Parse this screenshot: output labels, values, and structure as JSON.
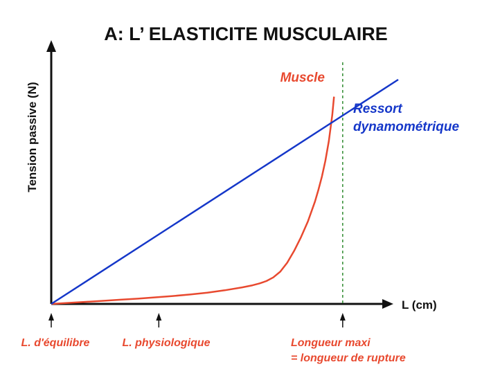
{
  "chart_data": {
    "type": "line",
    "title": "A: L’ ELASTICITE MUSCULAIRE",
    "ylabel": "Tension passive (N)",
    "xlabel": "L (cm)",
    "grid": false,
    "series": [
      {
        "name": "Muscle",
        "color": "#e8492f",
        "x": [
          0,
          5,
          10,
          15,
          20,
          25,
          30,
          35,
          40,
          45,
          50,
          55,
          58,
          60,
          62,
          64,
          66,
          68,
          70,
          72,
          74,
          76,
          77,
          78,
          79,
          80,
          81,
          81.5
        ],
        "y": [
          0,
          0.4,
          0.8,
          1.2,
          1.6,
          2.0,
          2.5,
          3.0,
          3.6,
          4.3,
          5.2,
          6.3,
          7.1,
          7.8,
          8.7,
          10.1,
          12.3,
          15.7,
          20.2,
          25.5,
          31.5,
          39.0,
          43.5,
          48.5,
          54.5,
          62.0,
          72.0,
          79.0
        ]
      },
      {
        "name": "Ressort dynamométrique",
        "label_lines": [
          "Ressort",
          "dynamométrique"
        ],
        "color": "#1537c9",
        "x": [
          0,
          100
        ],
        "y": [
          0,
          85.5
        ]
      }
    ],
    "markers": [
      {
        "x": 0,
        "label_lines": [
          "L. d'équilibre"
        ]
      },
      {
        "x": 31,
        "label_lines": [
          "L. physiologique"
        ]
      },
      {
        "x": 84,
        "label_lines": [
          "Longueur maxi",
          "= longueur de rupture"
        ],
        "dashed_line": true,
        "color": "#2e8b2e"
      }
    ],
    "label_color": "#e8492f",
    "axis_color": "#111111"
  }
}
